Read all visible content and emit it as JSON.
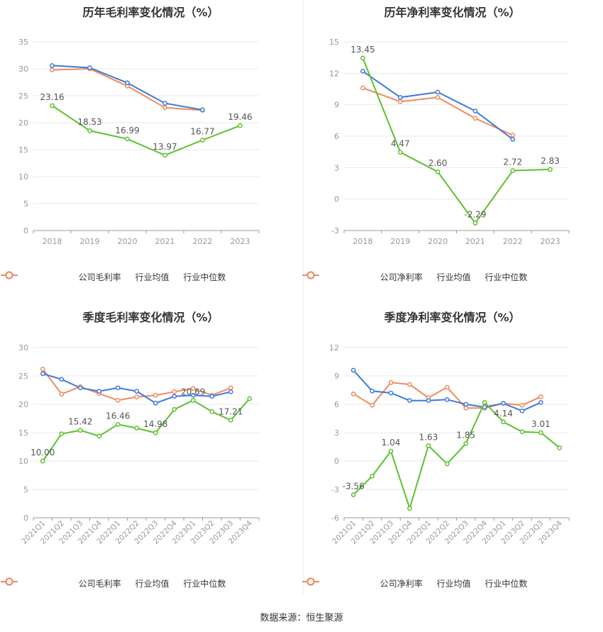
{
  "colors": {
    "company": "#5cc12f",
    "industry_avg": "#3e79dc",
    "industry_median": "#f08a5d",
    "grid": "#e9e9e9",
    "axis_text": "#999999",
    "label_text": "#555555"
  },
  "source": "数据来源：恒生聚源",
  "chart_data": [
    {
      "type": "line",
      "title": "历年毛利率变化情况（%）",
      "categories": [
        "2018",
        "2019",
        "2020",
        "2021",
        "2022",
        "2023"
      ],
      "ylim": [
        0,
        35
      ],
      "yticks": [
        0,
        5,
        10,
        15,
        20,
        25,
        30,
        35
      ],
      "rotate_x": false,
      "grid": true,
      "legend_position": "bottom",
      "series": [
        {
          "name": "公司毛利率",
          "color_key": "company",
          "values": [
            23.16,
            18.53,
            16.99,
            13.97,
            16.77,
            19.46
          ],
          "labels": [
            "23.16",
            "18.53",
            "16.99",
            "13.97",
            "16.77",
            "19.46"
          ]
        },
        {
          "name": "行业均值",
          "color_key": "industry_avg",
          "values": [
            30.6,
            30.2,
            27.4,
            23.6,
            22.4,
            null
          ]
        },
        {
          "name": "行业中位数",
          "color_key": "industry_median",
          "values": [
            29.8,
            30.0,
            26.8,
            22.8,
            22.3,
            null
          ]
        }
      ]
    },
    {
      "type": "line",
      "title": "历年净利率变化情况（%）",
      "categories": [
        "2018",
        "2019",
        "2020",
        "2021",
        "2022",
        "2023"
      ],
      "ylim": [
        -3,
        15
      ],
      "yticks": [
        -3,
        0,
        3,
        6,
        9,
        12,
        15
      ],
      "rotate_x": false,
      "grid": true,
      "legend_position": "bottom",
      "series": [
        {
          "name": "公司净利率",
          "color_key": "company",
          "values": [
            13.45,
            4.47,
            2.6,
            -2.29,
            2.72,
            2.83
          ],
          "labels": [
            "13.45",
            "4.47",
            "2.60",
            "-2.29",
            "2.72",
            "2.83"
          ]
        },
        {
          "name": "行业均值",
          "color_key": "industry_avg",
          "values": [
            12.2,
            9.7,
            10.2,
            8.4,
            5.7,
            null
          ]
        },
        {
          "name": "行业中位数",
          "color_key": "industry_median",
          "values": [
            10.6,
            9.3,
            9.7,
            7.7,
            6.1,
            null
          ]
        }
      ]
    },
    {
      "type": "line",
      "title": "季度毛利率变化情况（%）",
      "categories": [
        "2021Q1",
        "2021Q2",
        "2021Q3",
        "2021Q4",
        "2022Q1",
        "2022Q2",
        "2022Q3",
        "2022Q4",
        "2023Q1",
        "2023Q2",
        "2023Q3",
        "2023Q4"
      ],
      "ylim": [
        0,
        30
      ],
      "yticks": [
        0,
        5,
        10,
        15,
        20,
        25,
        30
      ],
      "rotate_x": true,
      "grid": true,
      "legend_position": "bottom",
      "series": [
        {
          "name": "公司毛利率",
          "color_key": "company",
          "values": [
            10.0,
            14.8,
            15.42,
            14.4,
            16.46,
            15.8,
            14.98,
            19.1,
            20.69,
            18.7,
            17.21,
            21.0
          ],
          "labels": [
            "10.00",
            "",
            "15.42",
            "",
            "16.46",
            "",
            "14.98",
            "",
            "20.69",
            "",
            "17.21",
            ""
          ]
        },
        {
          "name": "行业均值",
          "color_key": "industry_avg",
          "values": [
            25.4,
            24.4,
            22.9,
            22.3,
            22.9,
            22.3,
            20.2,
            21.4,
            21.6,
            21.4,
            22.2,
            null
          ]
        },
        {
          "name": "行业中位数",
          "color_key": "industry_median",
          "values": [
            26.2,
            21.8,
            23.1,
            21.9,
            20.7,
            21.3,
            21.6,
            22.2,
            22.8,
            21.6,
            22.9,
            null
          ]
        }
      ]
    },
    {
      "type": "line",
      "title": "季度净利率变化情况（%）",
      "categories": [
        "2021Q1",
        "2021Q2",
        "2021Q3",
        "2021Q4",
        "2022Q1",
        "2022Q2",
        "2022Q3",
        "2022Q4",
        "2023Q1",
        "2023Q2",
        "2023Q3",
        "2023Q4"
      ],
      "ylim": [
        -6,
        12
      ],
      "yticks": [
        -6,
        -3,
        0,
        3,
        6,
        9,
        12
      ],
      "rotate_x": true,
      "grid": true,
      "legend_position": "bottom",
      "series": [
        {
          "name": "公司净利率",
          "color_key": "company",
          "values": [
            -3.56,
            -1.6,
            1.04,
            -5.0,
            1.63,
            -0.3,
            1.85,
            6.2,
            4.14,
            3.1,
            3.01,
            1.4
          ],
          "labels": [
            "-3.56",
            "",
            "1.04",
            "",
            "1.63",
            "",
            "1.85",
            "",
            "4.14",
            "",
            "3.01",
            ""
          ]
        },
        {
          "name": "行业均值",
          "color_key": "industry_avg",
          "values": [
            9.6,
            7.4,
            7.2,
            6.4,
            6.4,
            6.5,
            6.0,
            5.7,
            6.1,
            5.3,
            6.2,
            null
          ]
        },
        {
          "name": "行业中位数",
          "color_key": "industry_median",
          "values": [
            7.1,
            5.9,
            8.3,
            8.1,
            6.7,
            7.8,
            5.6,
            5.6,
            6.1,
            5.9,
            6.8,
            null
          ]
        }
      ]
    }
  ]
}
